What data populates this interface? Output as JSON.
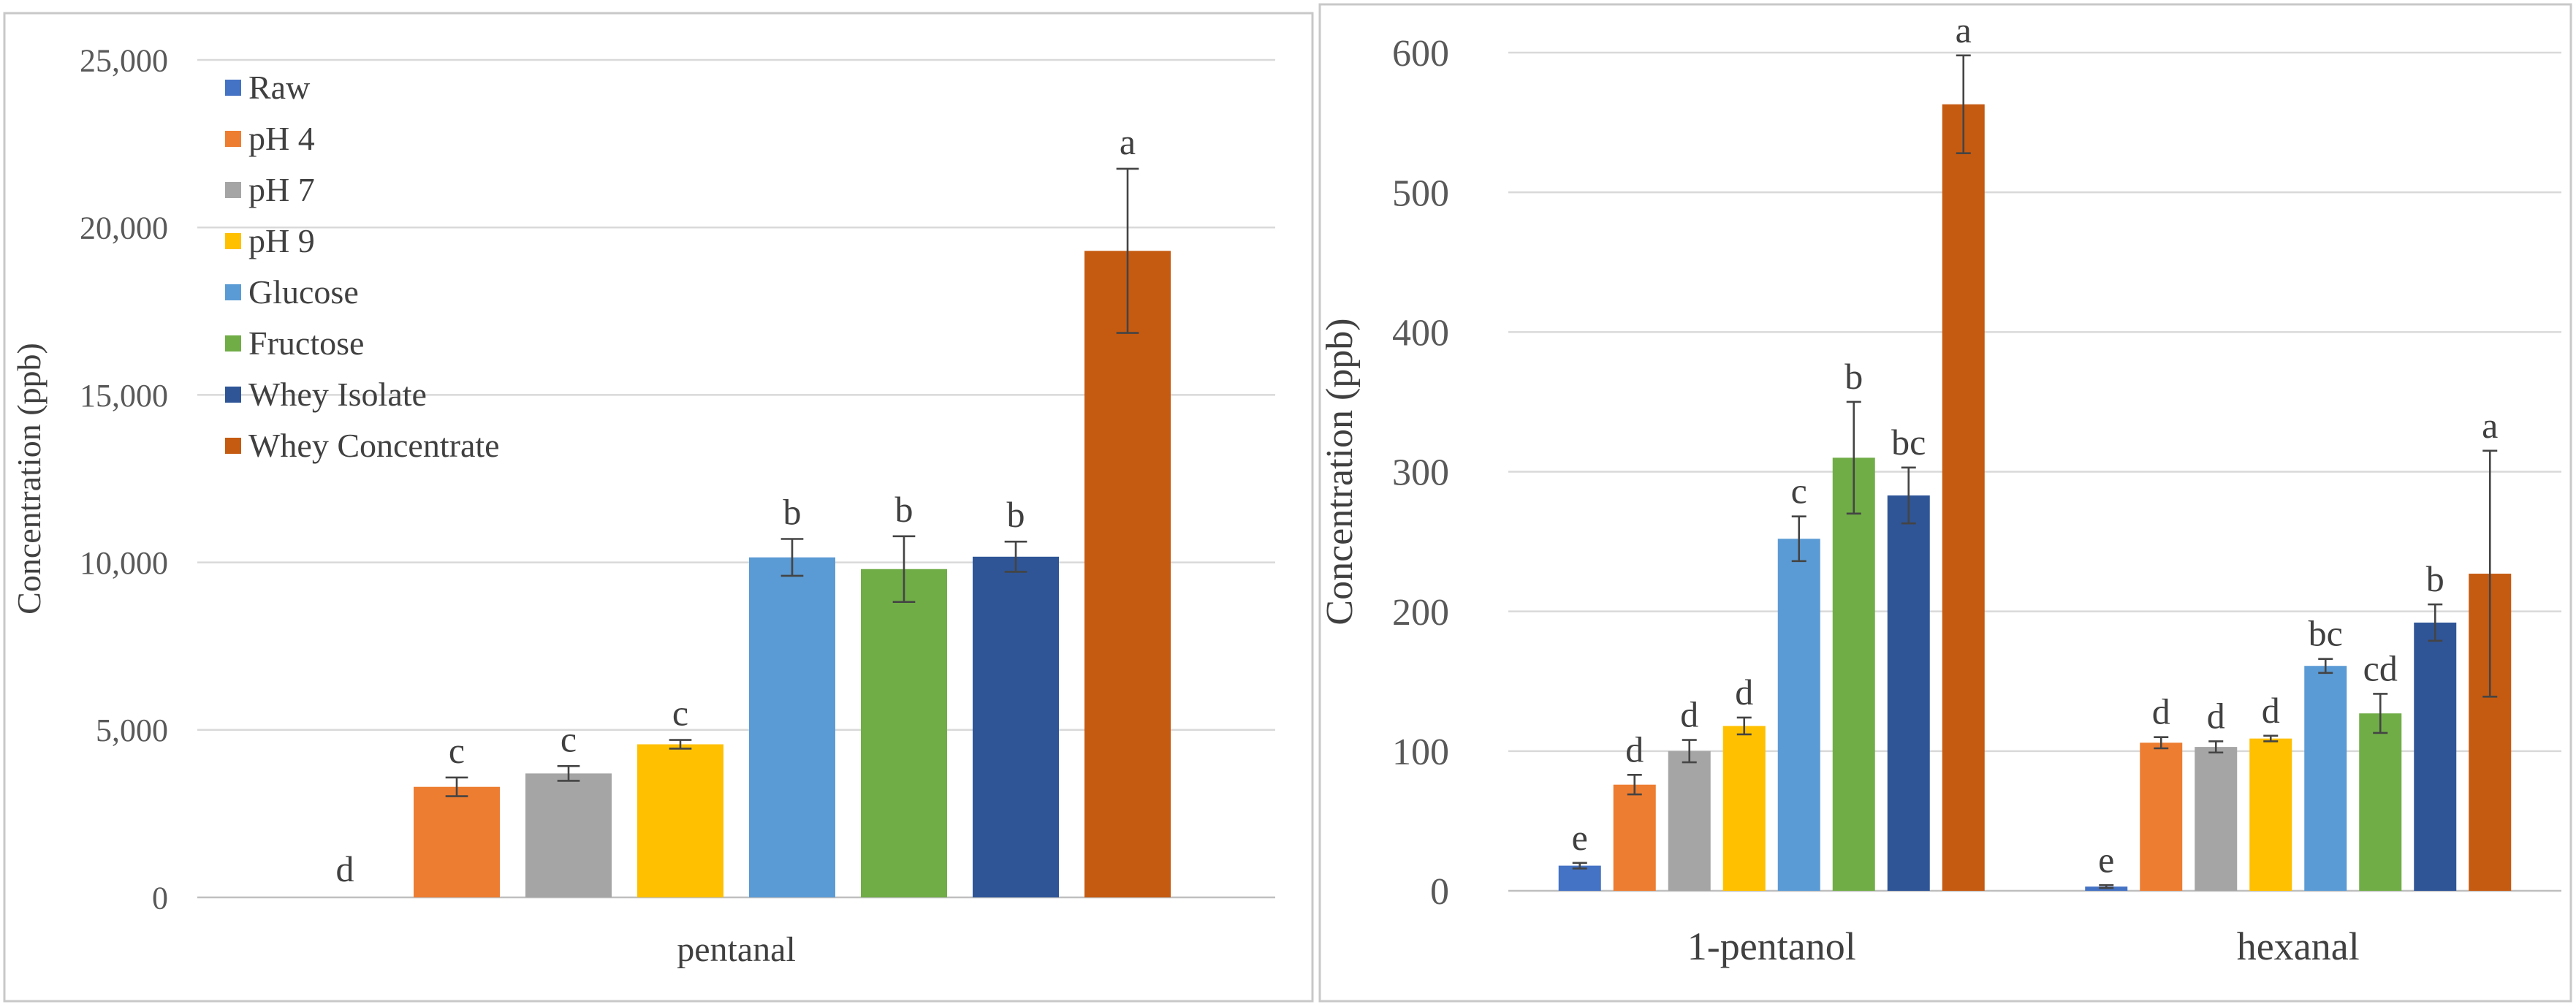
{
  "colors": {
    "Raw": "#4472c4",
    "pH 4": "#ed7d31",
    "pH 7": "#a5a5a5",
    "pH 9": "#ffc000",
    "Glucose": "#5b9bd5",
    "Fructose": "#70ad47",
    "Whey Isolate": "#2f5597",
    "Whey Concentrate": "#c55a11"
  },
  "chart_data": [
    {
      "type": "bar",
      "title": "",
      "xlabel": "",
      "ylabel": "Concentration (ppb)",
      "ylim": [
        0,
        25000
      ],
      "yticks": [
        "0",
        "5,000",
        "10,000",
        "15,000",
        "20,000",
        "25,000"
      ],
      "ytick_values": [
        0,
        5000,
        10000,
        15000,
        20000,
        25000
      ],
      "legend": [
        "Raw",
        "pH 4",
        "pH 7",
        "pH 9",
        "Glucose",
        "Fructose",
        "Whey Isolate",
        "Whey Concentrate"
      ],
      "legend_position": "top-left",
      "categories": [
        "pentanal"
      ],
      "series": [
        {
          "name": "Raw",
          "values": [
            0
          ],
          "errors": [
            0
          ],
          "labels": [
            "d"
          ]
        },
        {
          "name": "pH 4",
          "values": [
            3300
          ],
          "errors": [
            280
          ],
          "labels": [
            "c"
          ]
        },
        {
          "name": "pH 7",
          "values": [
            3700
          ],
          "errors": [
            220
          ],
          "labels": [
            "c"
          ]
        },
        {
          "name": "pH 9",
          "values": [
            4570
          ],
          "errors": [
            130
          ],
          "labels": [
            "c"
          ]
        },
        {
          "name": "Glucose",
          "values": [
            10150
          ],
          "errors": [
            550
          ],
          "labels": [
            "b"
          ]
        },
        {
          "name": "Fructose",
          "values": [
            9800
          ],
          "errors": [
            980
          ],
          "labels": [
            "b"
          ]
        },
        {
          "name": "Whey Isolate",
          "values": [
            10170
          ],
          "errors": [
            450
          ],
          "labels": [
            "b"
          ]
        },
        {
          "name": "Whey Concentrate",
          "values": [
            19300
          ],
          "errors": [
            2450
          ],
          "labels": [
            "a"
          ]
        }
      ]
    },
    {
      "type": "bar",
      "title": "",
      "xlabel": "",
      "ylabel": "Concentration (ppb)",
      "ylim": [
        0,
        600
      ],
      "yticks": [
        "0",
        "100",
        "200",
        "300",
        "400",
        "500",
        "600"
      ],
      "ytick_values": [
        0,
        100,
        200,
        300,
        400,
        500,
        600
      ],
      "categories": [
        "1-pentanol",
        "hexanal"
      ],
      "series": [
        {
          "name": "Raw",
          "values": [
            18,
            3
          ],
          "errors": [
            2,
            1
          ],
          "labels": [
            "e",
            "e"
          ]
        },
        {
          "name": "pH 4",
          "values": [
            76,
            106
          ],
          "errors": [
            7,
            4
          ],
          "labels": [
            "d",
            "d"
          ]
        },
        {
          "name": "pH 7",
          "values": [
            100,
            103
          ],
          "errors": [
            8,
            4
          ],
          "labels": [
            "d",
            "d"
          ]
        },
        {
          "name": "pH 9",
          "values": [
            118,
            109
          ],
          "errors": [
            6,
            2
          ],
          "labels": [
            "d",
            "d"
          ]
        },
        {
          "name": "Glucose",
          "values": [
            252,
            161
          ],
          "errors": [
            16,
            5
          ],
          "labels": [
            "c",
            "bc"
          ]
        },
        {
          "name": "Fructose",
          "values": [
            310,
            127
          ],
          "errors": [
            40,
            14
          ],
          "labels": [
            "b",
            "cd"
          ]
        },
        {
          "name": "Whey Isolate",
          "values": [
            283,
            192
          ],
          "errors": [
            20,
            13
          ],
          "labels": [
            "bc",
            "b"
          ]
        },
        {
          "name": "Whey Concentrate",
          "values": [
            563,
            227
          ],
          "errors": [
            35,
            88
          ],
          "labels": [
            "a",
            "a"
          ]
        }
      ]
    }
  ]
}
